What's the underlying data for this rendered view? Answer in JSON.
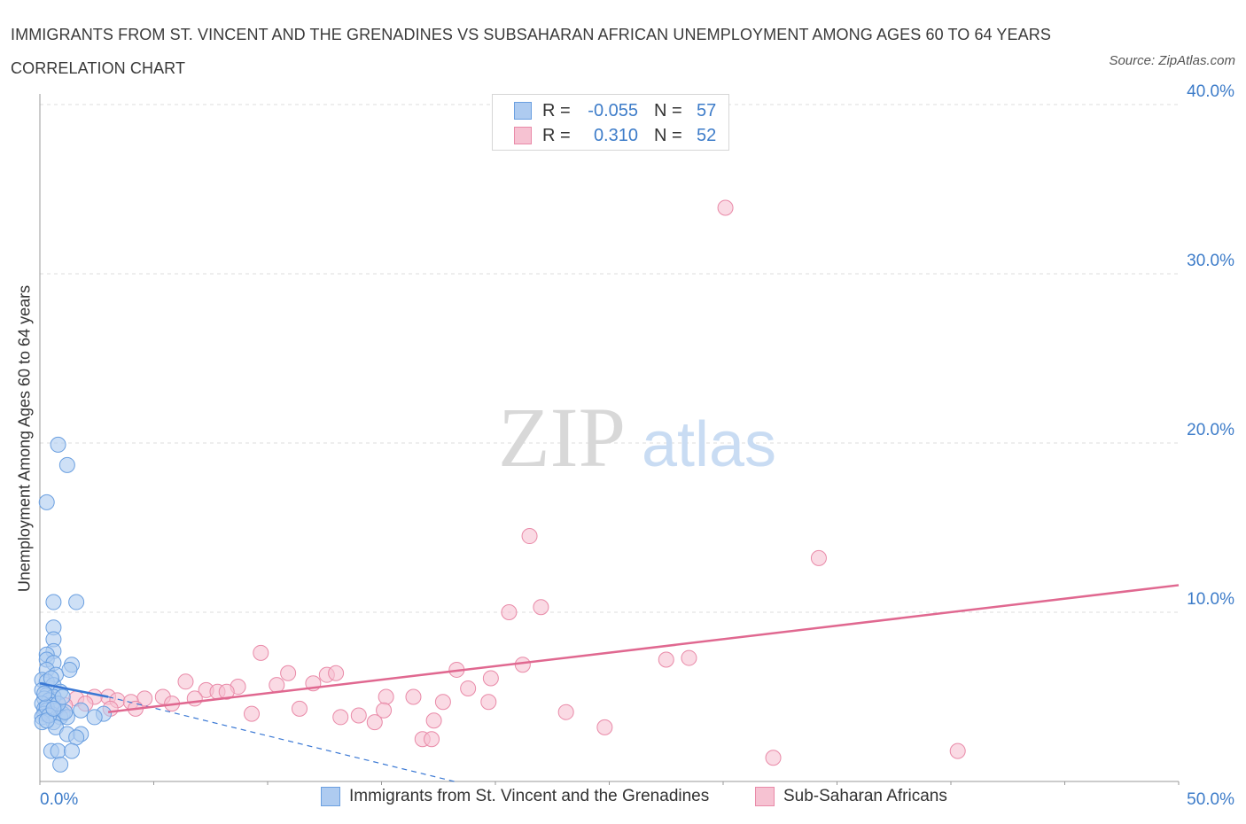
{
  "title": "IMMIGRANTS FROM ST. VINCENT AND THE GRENADINES VS SUBSAHARAN AFRICAN UNEMPLOYMENT AMONG AGES 60 TO 64 YEARS CORRELATION CHART",
  "source": "Source: ZipAtlas.com",
  "watermark": {
    "zip": "ZIP",
    "atlas": "atlas"
  },
  "legend_top": {
    "rows": [
      {
        "r_label": "R =",
        "r_value": "-0.055",
        "n_label": "N =",
        "n_value": "57"
      },
      {
        "r_label": "R =",
        "r_value": "0.310",
        "n_label": "N =",
        "n_value": "52"
      }
    ]
  },
  "legend_bottom": {
    "items": [
      {
        "label": "Immigrants from St. Vincent and the Grenadines"
      },
      {
        "label": "Sub-Saharan Africans"
      }
    ]
  },
  "colors": {
    "blue_fill": "#aecbf0",
    "blue_stroke": "#6a9fe0",
    "blue_line": "#3a78d4",
    "pink_fill": "#f6c2d2",
    "pink_stroke": "#e98aa8",
    "pink_line": "#e06890",
    "axis_text": "#3d7cc9",
    "grid": "#dcdcdc"
  },
  "chart_data": {
    "type": "scatter",
    "title": "IMMIGRANTS FROM ST. VINCENT AND THE GRENADINES VS SUBSAHARAN AFRICAN UNEMPLOYMENT AMONG AGES 60 TO 64 YEARS CORRELATION CHART",
    "xlabel": "",
    "ylabel": "Unemployment Among Ages 60 to 64 years",
    "xlim": [
      0,
      50
    ],
    "ylim": [
      0,
      40
    ],
    "x_tick_labels": [
      "0.0%",
      "50.0%"
    ],
    "y_ticks": [
      10,
      20,
      30,
      40
    ],
    "y_tick_labels": [
      "10.0%",
      "20.0%",
      "30.0%",
      "40.0%"
    ],
    "grid": true,
    "series": [
      {
        "name": "Immigrants from St. Vincent and the Grenadines",
        "R": -0.055,
        "N": 57,
        "trend_solid": {
          "x": [
            0.0,
            3.0
          ],
          "y": [
            5.8,
            5.0
          ]
        },
        "trend_dashed": {
          "x": [
            3.0,
            18.2
          ],
          "y": [
            5.0,
            0.0
          ]
        },
        "points": [
          [
            0.8,
            19.9
          ],
          [
            1.2,
            18.7
          ],
          [
            0.3,
            16.5
          ],
          [
            0.6,
            10.6
          ],
          [
            1.6,
            10.6
          ],
          [
            0.6,
            9.1
          ],
          [
            0.6,
            8.4
          ],
          [
            0.6,
            7.7
          ],
          [
            0.3,
            7.5
          ],
          [
            0.3,
            7.2
          ],
          [
            0.6,
            7.0
          ],
          [
            1.4,
            6.9
          ],
          [
            0.3,
            6.6
          ],
          [
            1.3,
            6.6
          ],
          [
            0.7,
            6.3
          ],
          [
            0.1,
            6.0
          ],
          [
            0.3,
            5.9
          ],
          [
            0.6,
            5.7
          ],
          [
            0.1,
            5.4
          ],
          [
            0.9,
            5.3
          ],
          [
            0.3,
            5.1
          ],
          [
            0.6,
            5.0
          ],
          [
            0.2,
            4.9
          ],
          [
            0.4,
            4.8
          ],
          [
            0.1,
            4.6
          ],
          [
            0.5,
            4.5
          ],
          [
            0.2,
            4.3
          ],
          [
            0.3,
            4.2
          ],
          [
            0.7,
            4.2
          ],
          [
            1.8,
            4.2
          ],
          [
            0.2,
            4.0
          ],
          [
            0.5,
            4.0
          ],
          [
            1.0,
            4.0
          ],
          [
            2.8,
            4.0
          ],
          [
            0.1,
            3.8
          ],
          [
            0.9,
            3.8
          ],
          [
            1.2,
            3.8
          ],
          [
            2.4,
            3.8
          ],
          [
            0.6,
            3.5
          ],
          [
            0.1,
            3.5
          ],
          [
            0.7,
            3.2
          ],
          [
            1.2,
            2.8
          ],
          [
            1.8,
            2.8
          ],
          [
            1.6,
            2.6
          ],
          [
            0.5,
            1.8
          ],
          [
            0.8,
            1.8
          ],
          [
            1.4,
            1.8
          ],
          [
            0.9,
            1.0
          ],
          [
            0.3,
            4.4
          ],
          [
            1.1,
            4.1
          ],
          [
            0.4,
            3.9
          ],
          [
            0.8,
            4.6
          ],
          [
            0.2,
            5.2
          ],
          [
            1.0,
            5.0
          ],
          [
            0.5,
            6.1
          ],
          [
            0.3,
            3.6
          ],
          [
            0.6,
            4.3
          ]
        ]
      },
      {
        "name": "Sub-Saharan Africans",
        "R": 0.31,
        "N": 52,
        "trend_solid": {
          "x": [
            3.0,
            50.0
          ],
          "y": [
            4.1,
            11.6
          ]
        },
        "points": [
          [
            30.1,
            33.9
          ],
          [
            21.5,
            14.5
          ],
          [
            34.2,
            13.2
          ],
          [
            22.0,
            10.3
          ],
          [
            20.6,
            10.0
          ],
          [
            9.7,
            7.6
          ],
          [
            27.5,
            7.2
          ],
          [
            28.5,
            7.3
          ],
          [
            21.2,
            6.9
          ],
          [
            18.3,
            6.6
          ],
          [
            10.9,
            6.4
          ],
          [
            12.6,
            6.3
          ],
          [
            13.0,
            6.4
          ],
          [
            19.8,
            6.1
          ],
          [
            6.4,
            5.9
          ],
          [
            12.0,
            5.8
          ],
          [
            8.7,
            5.6
          ],
          [
            10.4,
            5.7
          ],
          [
            7.3,
            5.4
          ],
          [
            7.8,
            5.3
          ],
          [
            8.2,
            5.3
          ],
          [
            18.8,
            5.5
          ],
          [
            15.2,
            5.0
          ],
          [
            3.0,
            5.0
          ],
          [
            2.4,
            5.0
          ],
          [
            1.6,
            4.9
          ],
          [
            3.4,
            4.8
          ],
          [
            5.4,
            5.0
          ],
          [
            16.4,
            5.0
          ],
          [
            4.6,
            4.9
          ],
          [
            6.8,
            4.9
          ],
          [
            2.0,
            4.6
          ],
          [
            5.8,
            4.6
          ],
          [
            4.0,
            4.7
          ],
          [
            17.7,
            4.7
          ],
          [
            19.7,
            4.7
          ],
          [
            1.1,
            4.5
          ],
          [
            3.1,
            4.3
          ],
          [
            4.2,
            4.3
          ],
          [
            11.4,
            4.3
          ],
          [
            9.3,
            4.0
          ],
          [
            15.1,
            4.2
          ],
          [
            23.1,
            4.1
          ],
          [
            13.2,
            3.8
          ],
          [
            14.0,
            3.9
          ],
          [
            14.7,
            3.5
          ],
          [
            17.3,
            3.6
          ],
          [
            24.8,
            3.2
          ],
          [
            16.8,
            2.5
          ],
          [
            17.2,
            2.5
          ],
          [
            32.2,
            1.4
          ],
          [
            40.3,
            1.8
          ]
        ]
      }
    ]
  }
}
